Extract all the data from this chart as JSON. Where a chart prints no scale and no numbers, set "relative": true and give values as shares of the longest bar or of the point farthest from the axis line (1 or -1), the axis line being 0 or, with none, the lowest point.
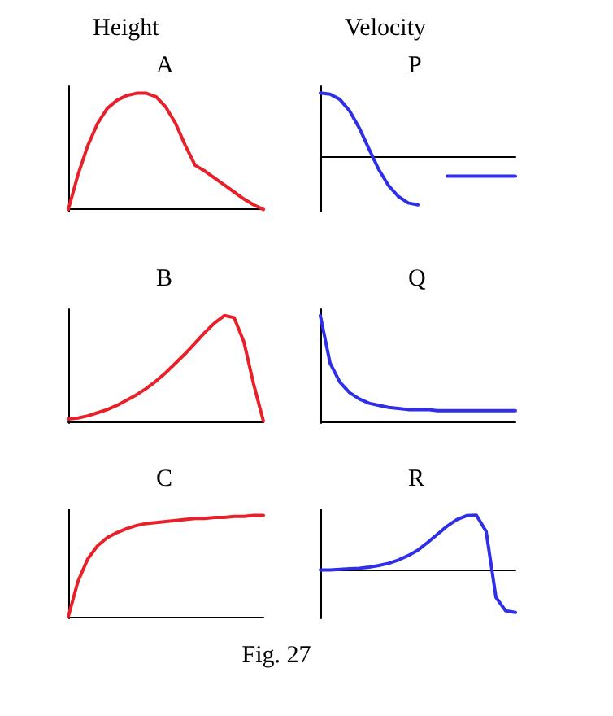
{
  "chart_data": [
    {
      "type": "line",
      "title": "Height",
      "annotations": [
        "A"
      ],
      "relative": true,
      "tick_labels": false,
      "grid": false,
      "categories": [
        null,
        null,
        null,
        null,
        null,
        null,
        null,
        null,
        null,
        null,
        null,
        null,
        null,
        null,
        null,
        null,
        null,
        null,
        null,
        null,
        null
      ],
      "series": [
        {
          "color": "#e8202a",
          "values": [
            0,
            0.3,
            0.55,
            0.74,
            0.87,
            0.94,
            0.98,
            1,
            1,
            0.97,
            0.88,
            0.74,
            0.55,
            0.38,
            0.33,
            0.27,
            0.21,
            0.15,
            0.09,
            0.04,
            0
          ]
        }
      ]
    },
    {
      "type": "line",
      "title": "Velocity",
      "annotations": [
        "P"
      ],
      "relative": true,
      "tick_labels": false,
      "grid": false,
      "categories": [
        null,
        null,
        null,
        null,
        null,
        null,
        null,
        null,
        null,
        null,
        null,
        null,
        null,
        null,
        null,
        null,
        null,
        null,
        null,
        null,
        null
      ],
      "series": [
        {
          "color": "#2f2fe8",
          "values": [
            1,
            0.98,
            0.9,
            0.72,
            0.45,
            0.12,
            -0.2,
            -0.45,
            -0.62,
            -0.72,
            -0.75,
            null,
            null,
            null,
            null,
            null,
            null,
            null,
            null,
            null,
            null
          ]
        },
        {
          "color": "#2f2fe8",
          "values": [
            null,
            null,
            null,
            null,
            null,
            null,
            null,
            null,
            null,
            null,
            null,
            null,
            null,
            -0.3,
            -0.3,
            -0.3,
            -0.3,
            -0.3,
            -0.3,
            -0.3,
            -0.3
          ]
        }
      ]
    },
    {
      "type": "line",
      "annotations": [
        "B"
      ],
      "relative": true,
      "tick_labels": false,
      "grid": false,
      "categories": [
        null,
        null,
        null,
        null,
        null,
        null,
        null,
        null,
        null,
        null,
        null,
        null,
        null,
        null,
        null,
        null,
        null,
        null,
        null,
        null,
        null
      ],
      "series": [
        {
          "color": "#e8202a",
          "values": [
            0.02,
            0.03,
            0.05,
            0.08,
            0.11,
            0.15,
            0.2,
            0.25,
            0.31,
            0.38,
            0.46,
            0.55,
            0.64,
            0.74,
            0.84,
            0.93,
            1,
            0.98,
            0.75,
            0.35,
            0
          ]
        }
      ]
    },
    {
      "type": "line",
      "annotations": [
        "Q"
      ],
      "relative": true,
      "tick_labels": false,
      "grid": false,
      "categories": [
        null,
        null,
        null,
        null,
        null,
        null,
        null,
        null,
        null,
        null,
        null,
        null,
        null,
        null,
        null,
        null,
        null,
        null,
        null,
        null,
        null
      ],
      "series": [
        {
          "color": "#2f2fe8",
          "values": [
            1,
            0.55,
            0.37,
            0.27,
            0.21,
            0.17,
            0.15,
            0.13,
            0.12,
            0.11,
            0.11,
            0.11,
            0.1,
            0.1,
            0.1,
            0.1,
            0.1,
            0.1,
            0.1,
            0.1,
            0.1
          ]
        }
      ]
    },
    {
      "type": "line",
      "annotations": [
        "C"
      ],
      "relative": true,
      "tick_labels": false,
      "grid": false,
      "categories": [
        null,
        null,
        null,
        null,
        null,
        null,
        null,
        null,
        null,
        null,
        null,
        null,
        null,
        null,
        null,
        null,
        null,
        null,
        null,
        null,
        null
      ],
      "series": [
        {
          "color": "#e8202a",
          "values": [
            0,
            0.35,
            0.57,
            0.7,
            0.78,
            0.83,
            0.87,
            0.9,
            0.92,
            0.93,
            0.94,
            0.95,
            0.96,
            0.97,
            0.97,
            0.98,
            0.98,
            0.99,
            0.99,
            1,
            1
          ]
        }
      ]
    },
    {
      "type": "line",
      "annotations": [
        "R",
        "Fig. 27"
      ],
      "relative": true,
      "tick_labels": false,
      "grid": false,
      "categories": [
        null,
        null,
        null,
        null,
        null,
        null,
        null,
        null,
        null,
        null,
        null,
        null,
        null,
        null,
        null,
        null,
        null,
        null,
        null,
        null,
        null
      ],
      "series": [
        {
          "color": "#2f2fe8",
          "values": [
            0,
            0,
            0.01,
            0.02,
            0.03,
            0.05,
            0.08,
            0.12,
            0.18,
            0.26,
            0.36,
            0.5,
            0.65,
            0.8,
            0.92,
            0.99,
            1,
            0.7,
            -0.5,
            -0.75,
            -0.78
          ]
        }
      ]
    }
  ]
}
